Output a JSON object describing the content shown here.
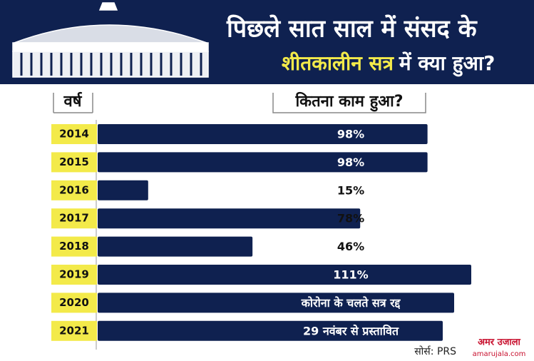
{
  "chart_data": {
    "type": "bar",
    "title": "पिछले सात साल में संसद के",
    "subtitle_highlight": "शीतकालीन सत्र",
    "subtitle_rest": "में क्या हुआ?",
    "category_header": "वर्ष",
    "value_header": "कितना काम हुआ?",
    "categories": [
      "2014",
      "2015",
      "2016",
      "2017",
      "2018",
      "2019",
      "2020",
      "2021"
    ],
    "values": [
      98,
      98,
      15,
      78,
      46,
      111,
      null,
      null
    ],
    "value_labels": [
      "98%",
      "98%",
      "15%",
      "78%",
      "46%",
      "111%",
      "कोरोना के चलते सत्र रद्द",
      "29 नवंबर से प्रस्तावित"
    ],
    "color": "#0f2150",
    "category_color": "#f3ea4a",
    "source": "सोर्स: PRS",
    "logo": "अमर उजाला",
    "logo_url": "amarujala.com"
  }
}
